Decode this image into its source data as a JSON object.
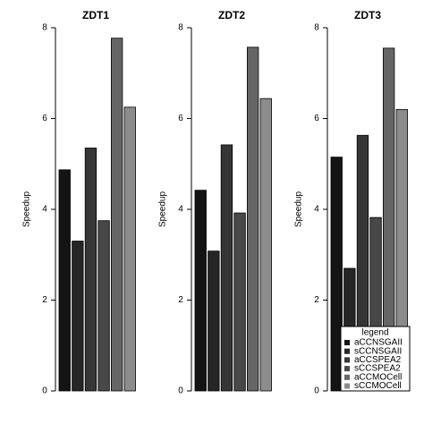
{
  "chart_data": [
    {
      "type": "bar",
      "title": "ZDT1",
      "y_label": "Speedup",
      "categories": [
        null,
        null,
        null,
        null,
        null,
        null
      ],
      "values": [
        4.87,
        3.3,
        5.35,
        3.75,
        7.77,
        6.25
      ],
      "colors": [
        "#141414",
        "#262626",
        "#363636",
        "#484848",
        "#666666",
        "#8c8c8c"
      ],
      "ylim": [
        0,
        8
      ],
      "yticks": [
        0,
        2,
        4,
        6,
        8
      ]
    },
    {
      "type": "bar",
      "title": "ZDT2",
      "y_label": "Speedup",
      "categories": [
        null,
        null,
        null,
        null,
        null,
        null
      ],
      "values": [
        4.42,
        3.08,
        5.42,
        3.92,
        7.57,
        6.44
      ],
      "colors": [
        "#141414",
        "#262626",
        "#363636",
        "#484848",
        "#666666",
        "#8c8c8c"
      ],
      "ylim": [
        0,
        8
      ],
      "yticks": [
        0,
        2,
        4,
        6,
        8
      ]
    },
    {
      "type": "bar",
      "title": "ZDT3",
      "y_label": "Speedup",
      "categories": [
        null,
        null,
        null,
        null,
        null,
        null
      ],
      "values": [
        5.15,
        2.7,
        5.63,
        3.82,
        7.55,
        6.2
      ],
      "colors": [
        "#141414",
        "#262626",
        "#363636",
        "#484848",
        "#666666",
        "#8c8c8c"
      ],
      "ylim": [
        0,
        8
      ],
      "yticks": [
        0,
        2,
        4,
        6,
        8
      ],
      "legend": {
        "title": "legend",
        "position": "bottom-right",
        "labels": [
          "aCCNSGAII",
          "sCCNSGAII",
          "aCCSPEA2",
          "sCCSPEA2",
          "aCCMOCell",
          "sCCMOCell"
        ]
      }
    }
  ]
}
